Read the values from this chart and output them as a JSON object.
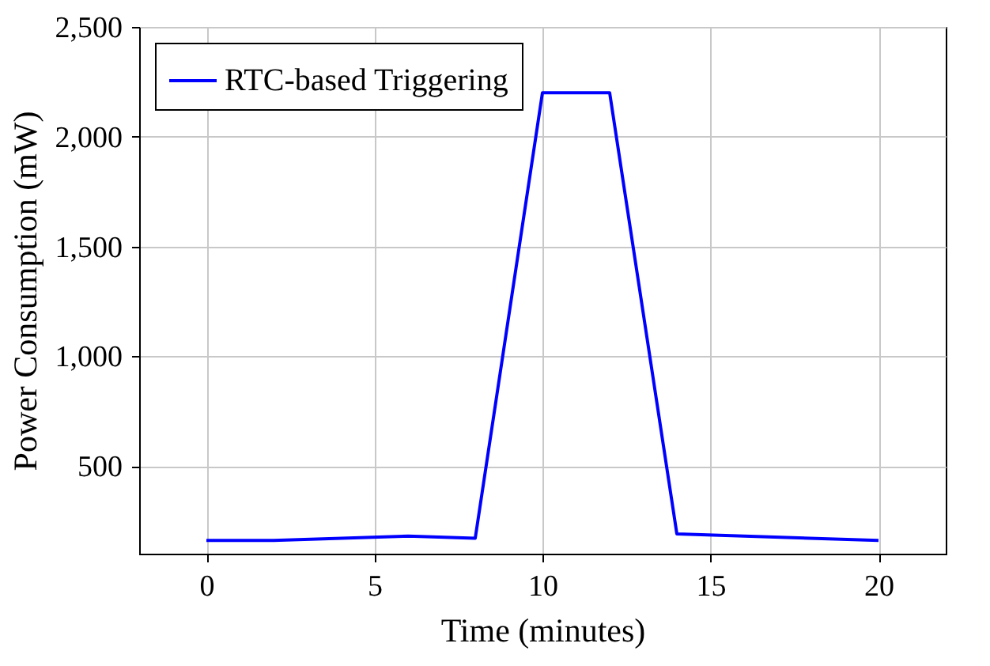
{
  "chart_data": {
    "type": "line",
    "xlabel": "Time (minutes)",
    "ylabel": "Power Consumption (mW)",
    "x": [
      0,
      2,
      6,
      8,
      10,
      12,
      14,
      20
    ],
    "series": [
      {
        "name": "RTC-based Triggering",
        "color": "#0000ff",
        "values": [
          160,
          160,
          180,
          170,
          2200,
          2200,
          190,
          160
        ]
      }
    ],
    "xlim": [
      -2,
      22
    ],
    "xticks": [
      0,
      5,
      10,
      15,
      20
    ],
    "ylim": [
      100,
      2500
    ],
    "yticks": [
      {
        "value": 500,
        "label": "500"
      },
      {
        "value": 1000,
        "label": "1,000"
      },
      {
        "value": 1500,
        "label": "1,500"
      },
      {
        "value": 2000,
        "label": "2,000"
      },
      {
        "value": 2500,
        "label": "2,500"
      }
    ],
    "grid": true,
    "legend": "top left",
    "marker": "none",
    "line_style": "solid"
  }
}
